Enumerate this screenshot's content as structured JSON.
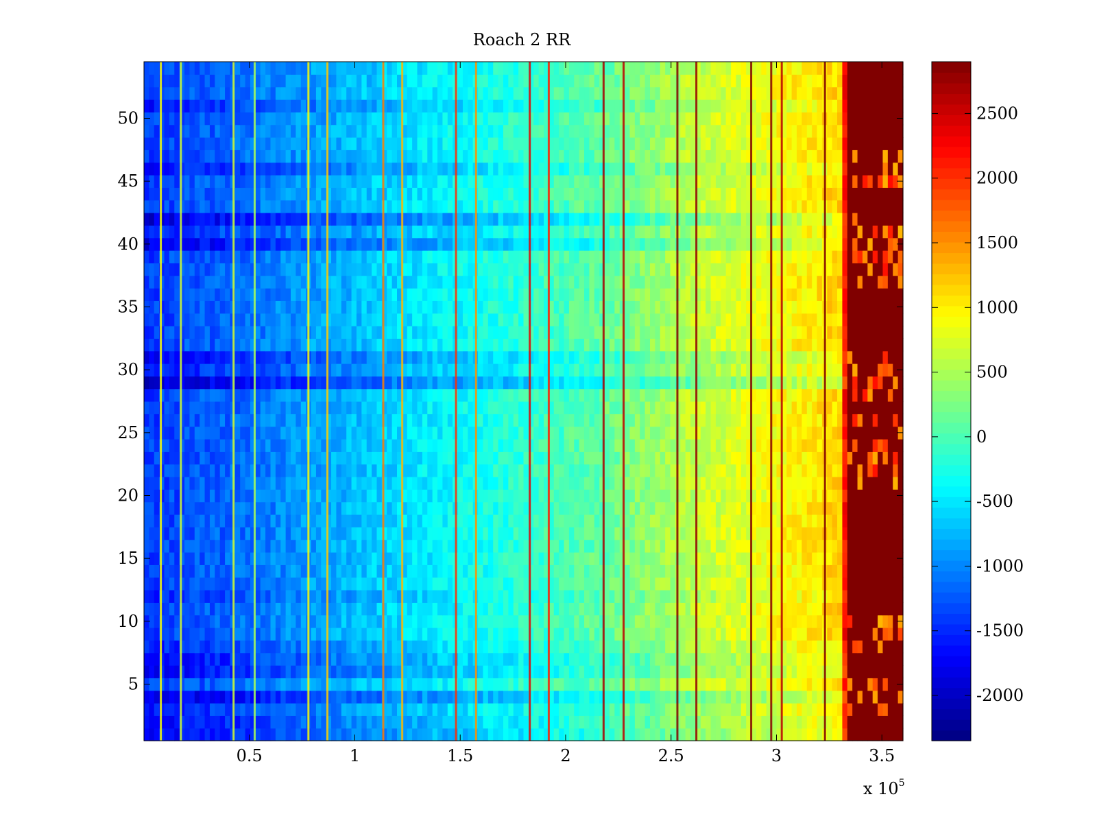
{
  "colors": {
    "background": "#ffffff",
    "axis": "#000000",
    "max_color": "#800000",
    "min_color": "#000080"
  },
  "chart_data": {
    "type": "heatmap",
    "title": "Roach 2 RR",
    "xlabel": "",
    "ylabel": "",
    "colormap": "jet",
    "x_multiplier": {
      "label": "x 10",
      "exponent": "5"
    },
    "xlim": [
      0,
      360000
    ],
    "ylim": [
      0.5,
      54.5
    ],
    "clim": [
      -2350,
      2900
    ],
    "x_ticks": [
      {
        "value": 50000,
        "label": "0.5"
      },
      {
        "value": 100000,
        "label": "1"
      },
      {
        "value": 150000,
        "label": "1.5"
      },
      {
        "value": 200000,
        "label": "2"
      },
      {
        "value": 250000,
        "label": "2.5"
      },
      {
        "value": 300000,
        "label": "3"
      },
      {
        "value": 350000,
        "label": "3.5"
      }
    ],
    "y_ticks": [
      {
        "value": 5,
        "label": "5"
      },
      {
        "value": 10,
        "label": "10"
      },
      {
        "value": 15,
        "label": "15"
      },
      {
        "value": 20,
        "label": "20"
      },
      {
        "value": 25,
        "label": "25"
      },
      {
        "value": 30,
        "label": "30"
      },
      {
        "value": 35,
        "label": "35"
      },
      {
        "value": 40,
        "label": "40"
      },
      {
        "value": 45,
        "label": "45"
      },
      {
        "value": 50,
        "label": "50"
      }
    ],
    "colorbar_ticks": [
      {
        "value": 2500,
        "label": "2500"
      },
      {
        "value": 2000,
        "label": "2000"
      },
      {
        "value": 1500,
        "label": "1500"
      },
      {
        "value": 1000,
        "label": "1000"
      },
      {
        "value": 500,
        "label": "500"
      },
      {
        "value": 0,
        "label": "0"
      },
      {
        "value": -500,
        "label": "-500"
      },
      {
        "value": -1000,
        "label": "-1000"
      },
      {
        "value": -1500,
        "label": "-1500"
      },
      {
        "value": -2000,
        "label": "-2000"
      }
    ],
    "x_range": [
      0,
      360000
    ],
    "rows": 54,
    "trend": {
      "x": [
        0,
        45000,
        90000,
        130000,
        180000,
        220000,
        260000,
        300000,
        330000,
        334000,
        360000
      ],
      "value": [
        -1400,
        -1150,
        -800,
        -500,
        -150,
        150,
        600,
        900,
        1150,
        2900,
        2900
      ]
    },
    "row_offsets": [
      {
        "row": 1,
        "offset": -350
      },
      {
        "row": 2,
        "offset": -300
      },
      {
        "row": 3,
        "offset": -200
      },
      {
        "row": 4,
        "offset": -500
      },
      {
        "row": 6,
        "offset": -300
      },
      {
        "row": 7,
        "offset": -300
      },
      {
        "row": 8,
        "offset": -150
      },
      {
        "row": 12,
        "offset": -120
      },
      {
        "row": 29,
        "offset": -550
      },
      {
        "row": 30,
        "offset": -200
      },
      {
        "row": 31,
        "offset": -350
      },
      {
        "row": 40,
        "offset": -450
      },
      {
        "row": 42,
        "offset": -500
      },
      {
        "row": 41,
        "offset": -150
      },
      {
        "row": 46,
        "offset": -250
      },
      {
        "row": 51,
        "offset": -200
      }
    ],
    "streaks": [
      {
        "x": 8000,
        "value": 900
      },
      {
        "x": 17500,
        "value": 700
      },
      {
        "x": 42500,
        "value": 700
      },
      {
        "x": 52500,
        "value": 500
      },
      {
        "x": 78000,
        "value": 900
      },
      {
        "x": 87000,
        "value": 1200
      },
      {
        "x": 113500,
        "value": 1600
      },
      {
        "x": 122500,
        "value": 1300
      },
      {
        "x": 148000,
        "value": 2000
      },
      {
        "x": 157500,
        "value": 1500
      },
      {
        "x": 183000,
        "value": 2400
      },
      {
        "x": 192000,
        "value": 2100
      },
      {
        "x": 218000,
        "value": 2700
      },
      {
        "x": 227500,
        "value": 2600
      },
      {
        "x": 253000,
        "value": 2900
      },
      {
        "x": 262000,
        "value": 2800
      },
      {
        "x": 288000,
        "value": 2900
      },
      {
        "x": 297500,
        "value": 2850
      },
      {
        "x": 302500,
        "value": 2600
      },
      {
        "x": 323000,
        "value": 2900
      }
    ],
    "saturated_band": {
      "x_start": 334000,
      "x_end": 360000,
      "value": 2900,
      "striped_rows": [
        3,
        4,
        5,
        8,
        9,
        10,
        21,
        22,
        23,
        24,
        25,
        26,
        28,
        29,
        30,
        31,
        37,
        38,
        39,
        40,
        41,
        42,
        45,
        46,
        47
      ]
    }
  }
}
